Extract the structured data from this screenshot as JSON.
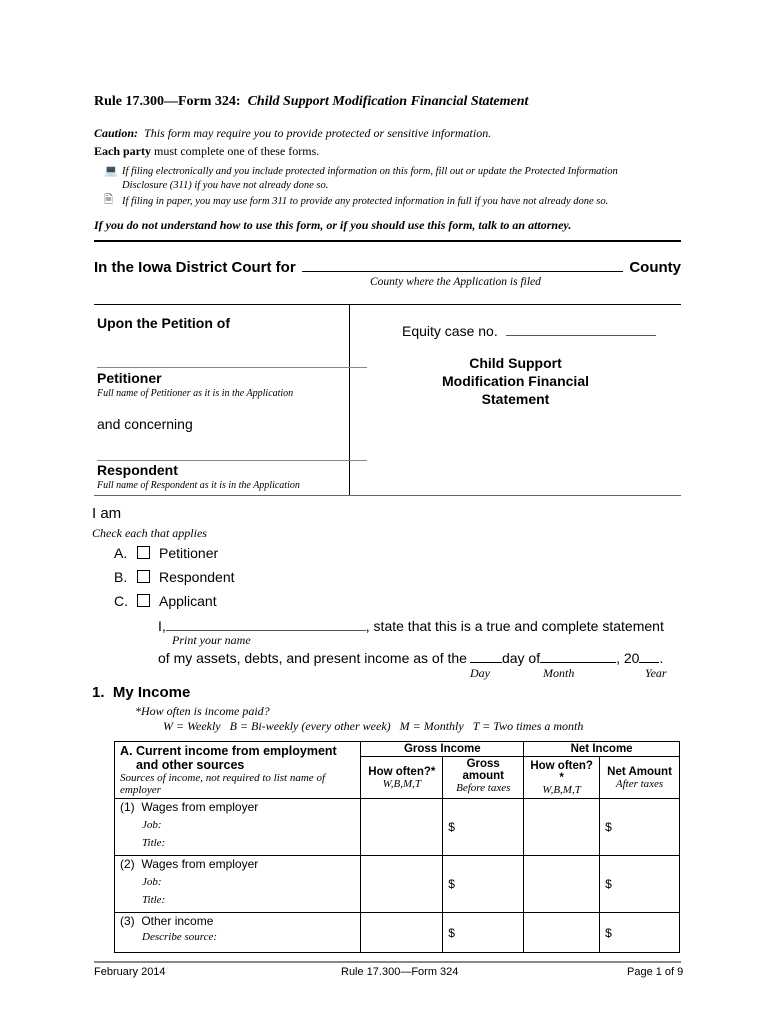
{
  "header": {
    "rule": "Rule 17.300—Form 324:",
    "title": "Child Support Modification Financial Statement"
  },
  "caution": {
    "label": "Caution:",
    "text": "This form may require you to provide protected or sensitive information."
  },
  "each_party": {
    "bold": "Each party",
    "text": "must complete one of these forms."
  },
  "bullets": [
    {
      "icon": "computer-icon",
      "line1": "If filing electronically and you include protected information on this form, fill out or update the Protected Information",
      "line2": "Disclosure (311) if you have not already done so."
    },
    {
      "icon": "document-icon",
      "line1": "If filing in paper, you may use form 311 to provide any protected information in full if you have not already done so."
    }
  ],
  "attorney_note": "If you do not understand how to use this form, or if you should use this form, talk to an attorney.",
  "court": {
    "prefix": "In the Iowa District Court for",
    "suffix": "County",
    "caption": "County where the Application is filed"
  },
  "caption_box": {
    "upon": "Upon the Petition of",
    "petitioner": "Petitioner",
    "petitioner_hint": "Full name of Petitioner as it is in the Application",
    "and_concerning": "and concerning",
    "respondent": "Respondent",
    "respondent_hint": "Full name of Respondent as it is in the Application",
    "equity_case": "Equity case no.",
    "doc_title_1": "Child Support",
    "doc_title_2": "Modification Financial",
    "doc_title_3": "Statement"
  },
  "i_am": {
    "label": "I am",
    "hint": "Check each that applies",
    "options": [
      {
        "letter": "A.",
        "label": "Petitioner",
        "checked": false
      },
      {
        "letter": "B.",
        "label": "Respondent",
        "checked": false
      },
      {
        "letter": "C.",
        "label": "Applicant",
        "checked": false
      }
    ]
  },
  "statement": {
    "i": "I,",
    "text1": ", state that this is a true and complete statement",
    "print_name": "Print your name",
    "text2": "of my assets, debts, and present income as of the",
    "day": "day of",
    "comma20": ", 20",
    "period": ".",
    "day_label": "Day",
    "month_label": "Month",
    "year_label": "Year"
  },
  "income": {
    "heading": "1.  My Income",
    "how_often_q": "*How often is income paid?",
    "legend": "W = Weekly   B = Bi-weekly (every other week)   M = Monthly   T = Two times a month",
    "table": {
      "col_a_title_1": "A. Current income from employment",
      "col_a_title_2": "and other sources",
      "col_a_hint": "Sources of income, not required to list name of employer",
      "gross_income": "Gross Income",
      "net_income": "Net Income",
      "how_often": "How often?*",
      "wbmt": "W,B,M,T",
      "gross_amount": "Gross amount",
      "before_taxes": "Before taxes",
      "net_amount": "Net Amount",
      "after_taxes": "After taxes",
      "rows": [
        {
          "num": "(1)",
          "label": "Wages from employer",
          "sub1": "Job:",
          "sub2": "Title:",
          "gross_dollar": "$",
          "net_dollar": "$"
        },
        {
          "num": "(2)",
          "label": "Wages from employer",
          "sub1": "Job:",
          "sub2": "Title:",
          "gross_dollar": "$",
          "net_dollar": "$"
        },
        {
          "num": "(3)",
          "label": "Other income",
          "sub1": "Describe source:",
          "gross_dollar": "$",
          "net_dollar": "$"
        }
      ]
    }
  },
  "footer": {
    "date": "February 2014",
    "form": "Rule 17.300—Form 324",
    "page": "Page 1 of 9"
  }
}
